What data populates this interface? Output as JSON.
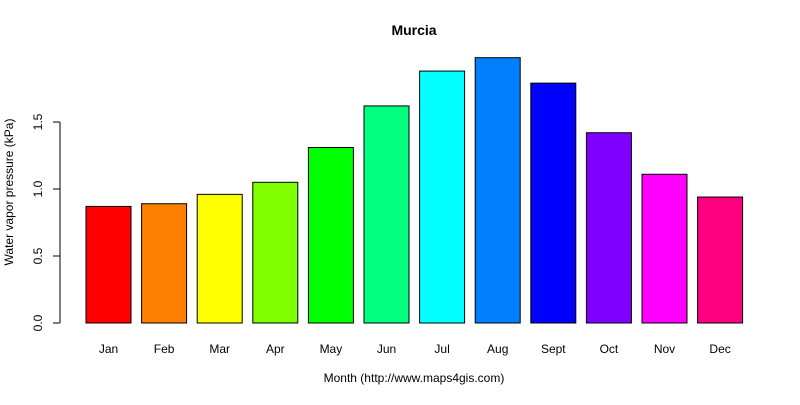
{
  "chart_data": {
    "type": "bar",
    "title": "Murcia",
    "xlabel": "Month (http://www.maps4gis.com)",
    "ylabel": "Water vapor pressure (kPa)",
    "categories": [
      "Jan",
      "Feb",
      "Mar",
      "Apr",
      "May",
      "Jun",
      "Jul",
      "Aug",
      "Sept",
      "Oct",
      "Nov",
      "Dec"
    ],
    "values": [
      0.87,
      0.89,
      0.96,
      1.05,
      1.31,
      1.62,
      1.88,
      1.98,
      1.79,
      1.42,
      1.11,
      0.94
    ],
    "colors": [
      "#FF0000",
      "#FF8000",
      "#FFFF00",
      "#80FF00",
      "#00FF00",
      "#00FF80",
      "#00FFFF",
      "#0080FF",
      "#0000FF",
      "#8000FF",
      "#FF00FF",
      "#FF0080"
    ],
    "yticks": [
      0.0,
      0.5,
      1.0,
      1.5
    ],
    "ytick_labels": [
      "0.0",
      "0.5",
      "1.0",
      "1.5"
    ],
    "ylim": [
      0,
      2.0
    ],
    "grid": false,
    "legend": "none"
  }
}
